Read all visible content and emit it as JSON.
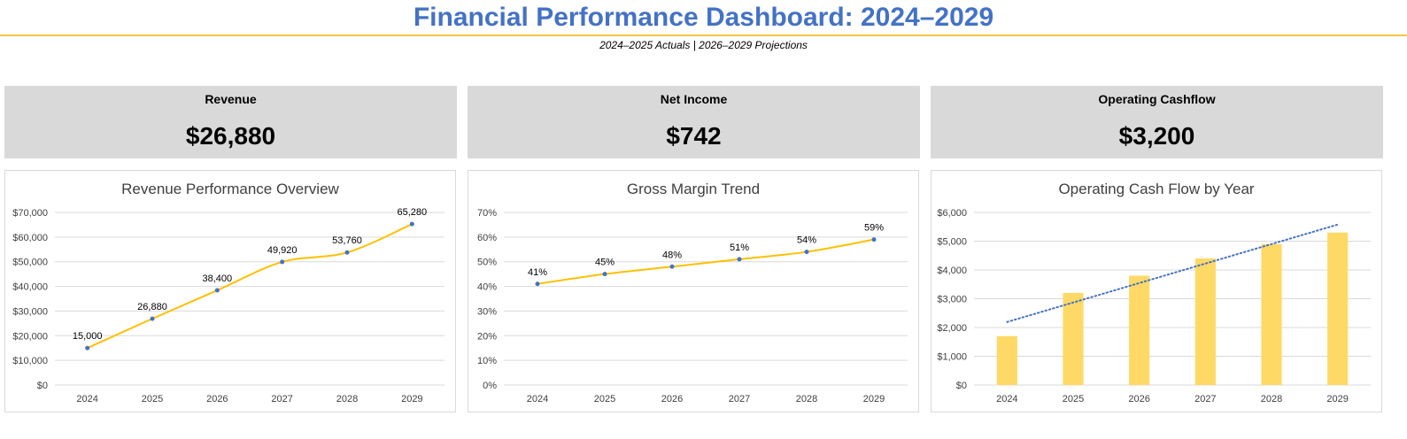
{
  "header": {
    "title": "Financial Performance Dashboard: 2024–2029",
    "subtitle": "2024–2025 Actuals | 2026–2029 Projections"
  },
  "kpis": [
    {
      "label": "Revenue",
      "value": "$26,880"
    },
    {
      "label": "Net Income",
      "value": "$742"
    },
    {
      "label": "Operating Cashflow",
      "value": "$3,200"
    }
  ],
  "colors": {
    "title": "#4472c4",
    "accent_line": "#f5c842",
    "line_series": "#ffc000",
    "marker": "#4472c4",
    "bar": "#ffd966",
    "trendline": "#4472c4",
    "gridline": "#d9d9d9",
    "kpi_background": "#d9d9d9"
  },
  "chart_data": [
    {
      "type": "line",
      "title": "Revenue Performance Overview",
      "categories": [
        "2024",
        "2025",
        "2026",
        "2027",
        "2028",
        "2029"
      ],
      "values": [
        15000,
        26880,
        38400,
        49920,
        53760,
        65280
      ],
      "data_labels": [
        "15,000",
        "26,880",
        "38,400",
        "49,920",
        "53,760",
        "65,280"
      ],
      "ylim": [
        0,
        70000
      ],
      "yticks": [
        "$0",
        "$10,000",
        "$20,000",
        "$30,000",
        "$40,000",
        "$50,000",
        "$60,000",
        "$70,000"
      ],
      "smooth": true,
      "grid": true
    },
    {
      "type": "line",
      "title": "Gross Margin Trend",
      "categories": [
        "2024",
        "2025",
        "2026",
        "2027",
        "2028",
        "2029"
      ],
      "values": [
        41,
        45,
        48,
        51,
        54,
        59
      ],
      "data_labels": [
        "41%",
        "45%",
        "48%",
        "51%",
        "54%",
        "59%"
      ],
      "ylim": [
        0,
        70
      ],
      "yticks": [
        "0%",
        "10%",
        "20%",
        "30%",
        "40%",
        "50%",
        "60%",
        "70%"
      ],
      "smooth": true,
      "grid": true
    },
    {
      "type": "bar",
      "title": "Operating Cash Flow by Year",
      "categories": [
        "2024",
        "2025",
        "2026",
        "2027",
        "2028",
        "2029"
      ],
      "values": [
        1700,
        3200,
        3800,
        4400,
        4900,
        5300
      ],
      "ylim": [
        0,
        6000
      ],
      "yticks": [
        "$0",
        "$1,000",
        "$2,000",
        "$3,000",
        "$4,000",
        "$5,000",
        "$6,000"
      ],
      "trendline": "linear-dotted",
      "grid": true
    }
  ]
}
